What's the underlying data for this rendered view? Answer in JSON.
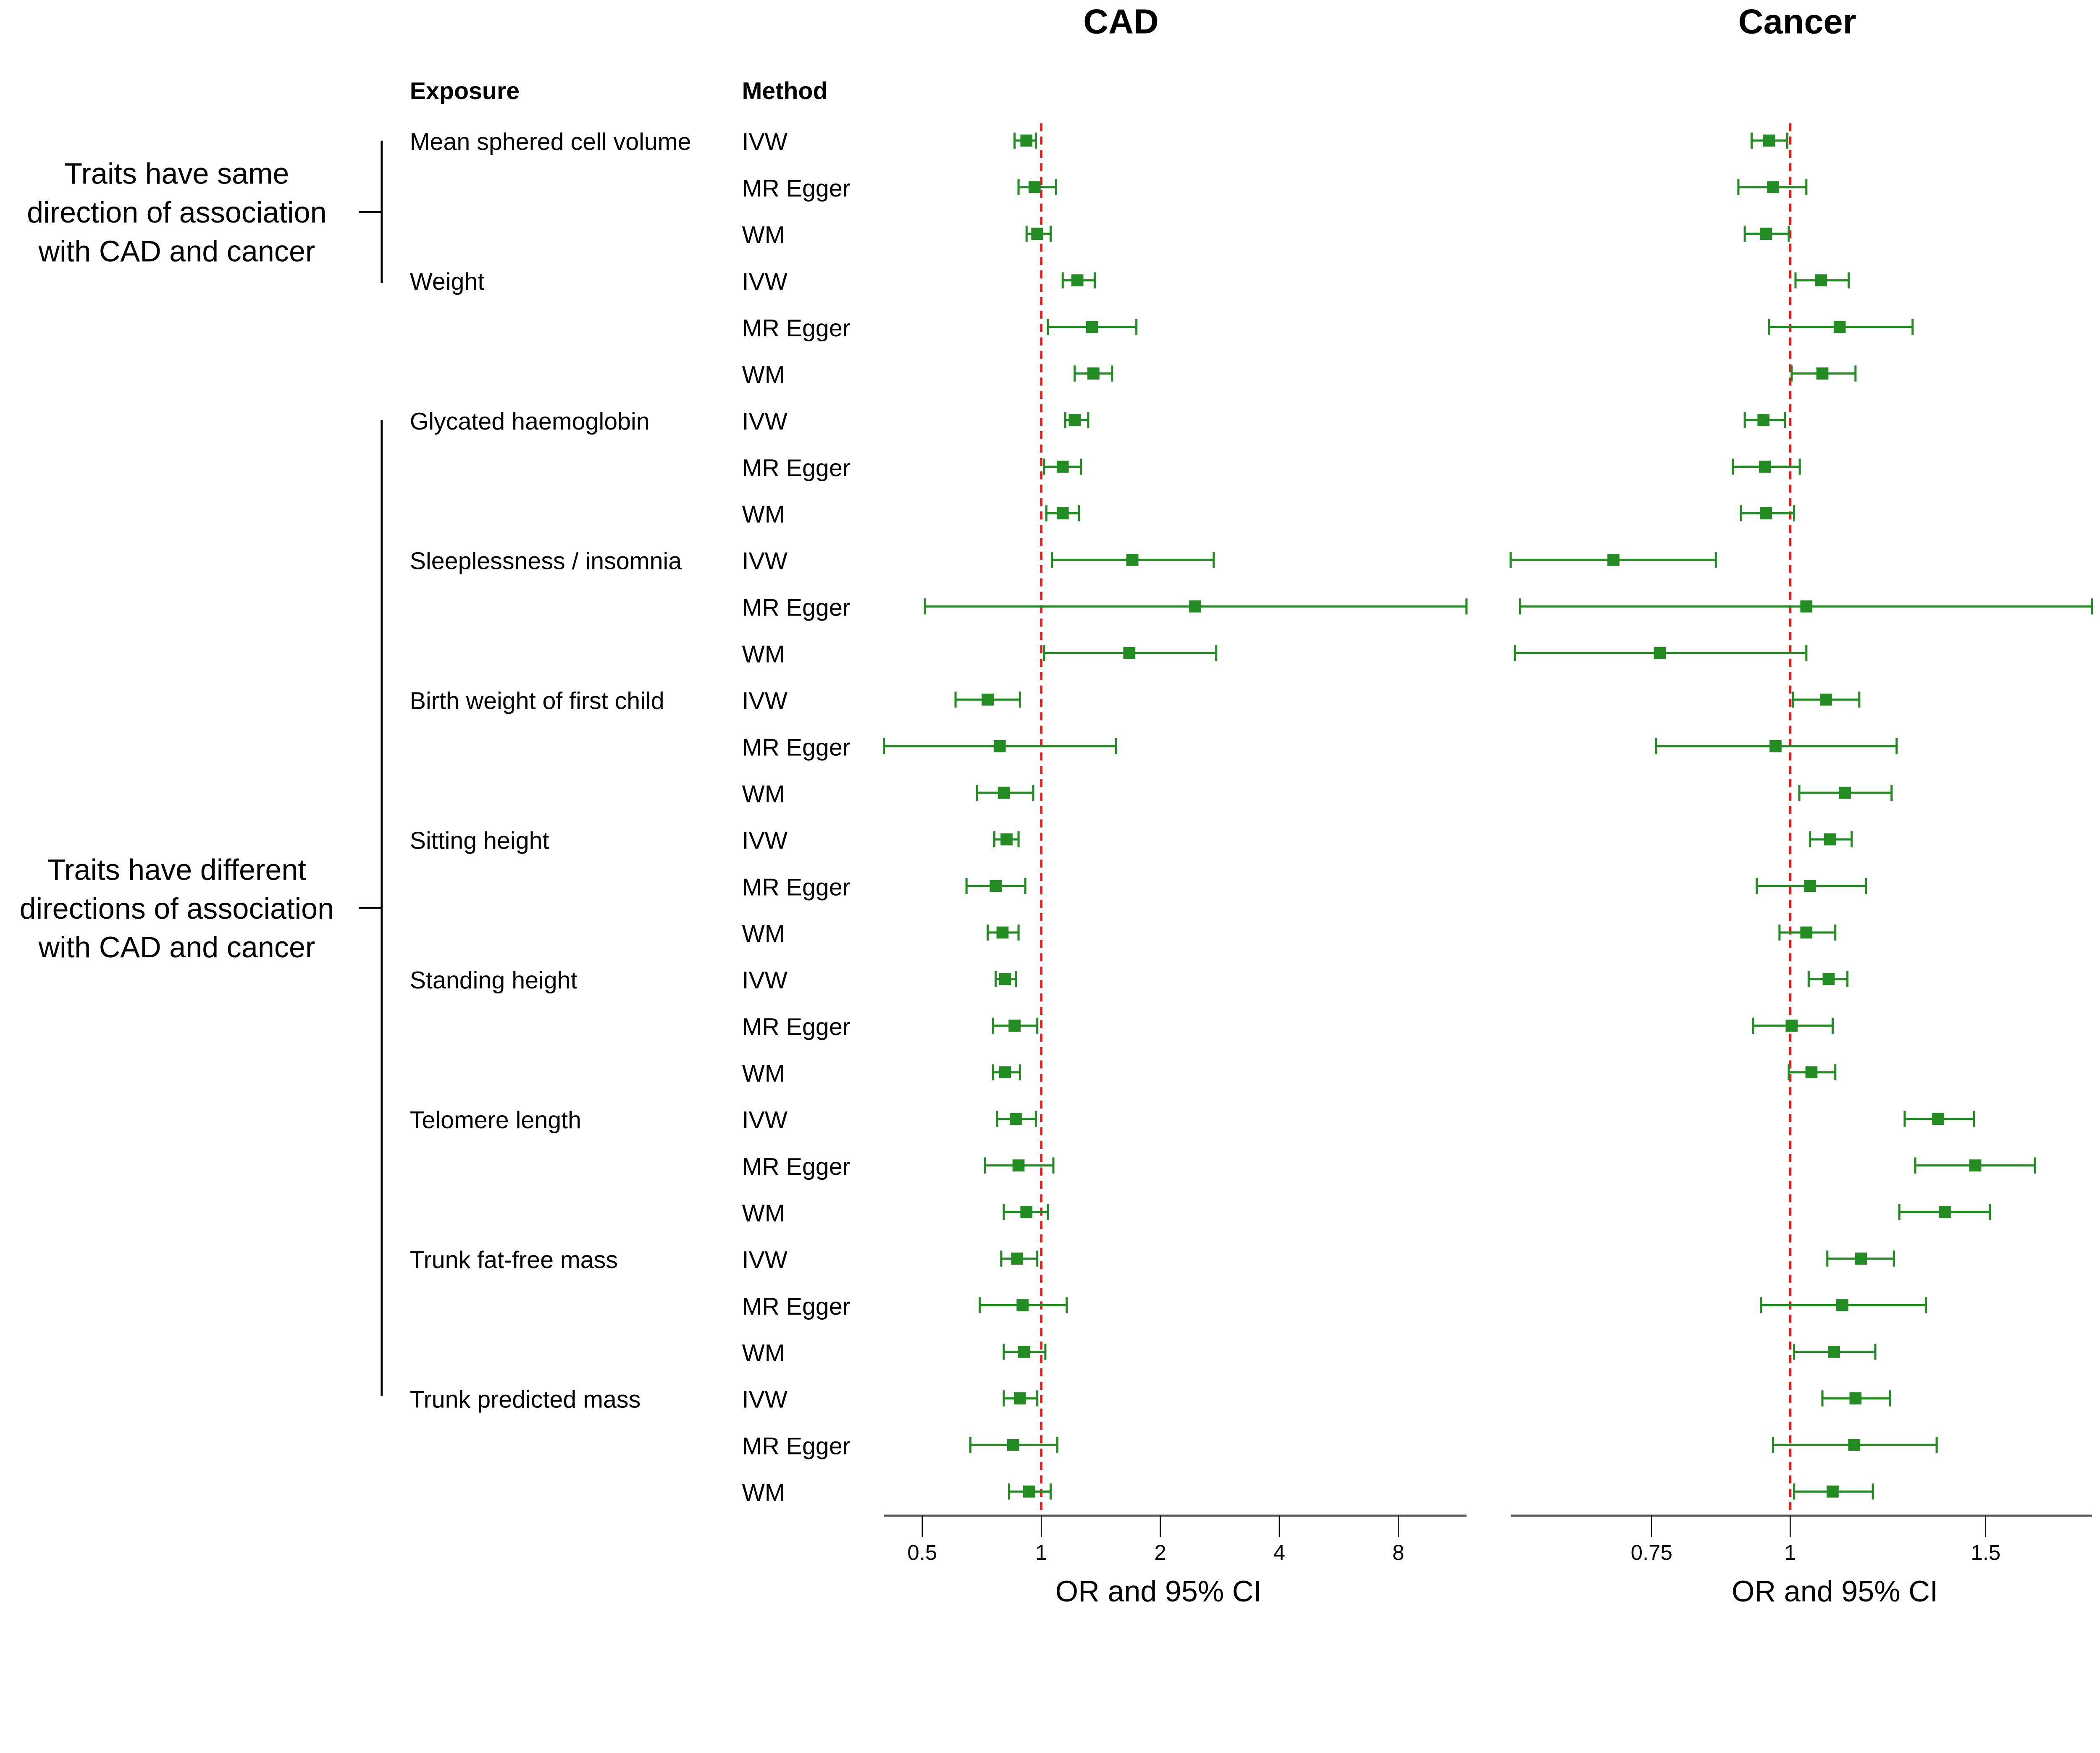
{
  "chart_data": [
    {
      "type": "forest",
      "title": "CAD",
      "xlabel": "OR and 95% CI",
      "xscale": "log",
      "xticks": [
        0.5,
        1,
        2,
        4,
        8
      ],
      "tick_labels": [
        "0.5",
        "1",
        "2",
        "4",
        "8"
      ],
      "xlim": [
        0.4,
        11.9
      ],
      "reference_line": 1,
      "values": [
        [
          0.917,
          0.856,
          0.969
        ],
        [
          0.962,
          0.876,
          1.09
        ],
        [
          0.977,
          0.918,
          1.056
        ],
        [
          1.234,
          1.133,
          1.365
        ],
        [
          1.345,
          1.04,
          1.74
        ],
        [
          1.355,
          1.215,
          1.51
        ],
        [
          1.215,
          1.15,
          1.314
        ],
        [
          1.133,
          1.016,
          1.26
        ],
        [
          1.133,
          1.03,
          1.244
        ],
        [
          1.7,
          1.064,
          2.73
        ],
        [
          2.45,
          0.508,
          12.0
        ],
        [
          1.67,
          1.016,
          2.77
        ],
        [
          0.732,
          0.607,
          0.883
        ],
        [
          0.785,
          0.399,
          1.546
        ],
        [
          0.804,
          0.688,
          0.954
        ],
        [
          0.817,
          0.761,
          0.876
        ],
        [
          0.767,
          0.647,
          0.911
        ],
        [
          0.798,
          0.732,
          0.876
        ],
        [
          0.81,
          0.767,
          0.862
        ],
        [
          0.856,
          0.755,
          0.977
        ],
        [
          0.81,
          0.755,
          0.883
        ],
        [
          0.862,
          0.773,
          0.969
        ],
        [
          0.876,
          0.721,
          1.073
        ],
        [
          0.917,
          0.804,
          1.04
        ],
        [
          0.869,
          0.792,
          0.977
        ],
        [
          0.897,
          0.699,
          1.16
        ],
        [
          0.904,
          0.804,
          1.024
        ],
        [
          0.883,
          0.804,
          0.977
        ],
        [
          0.849,
          0.662,
          1.098
        ],
        [
          0.932,
          0.829,
          1.056
        ]
      ]
    },
    {
      "type": "forest",
      "title": "Cancer",
      "xlabel": "OR and 95% CI",
      "xscale": "log",
      "xticks": [
        0.75,
        1,
        1.5
      ],
      "tick_labels": [
        "0.75",
        "1",
        "1.5"
      ],
      "xlim": [
        0.56,
        1.87
      ],
      "reference_line": 1,
      "values": [
        [
          0.957,
          0.923,
          0.994
        ],
        [
          0.965,
          0.898,
          1.034
        ],
        [
          0.951,
          0.91,
          0.997
        ],
        [
          1.066,
          1.011,
          1.129
        ],
        [
          1.108,
          0.957,
          1.289
        ],
        [
          1.069,
          1.003,
          1.145
        ],
        [
          0.946,
          0.91,
          0.989
        ],
        [
          0.949,
          0.888,
          1.02
        ],
        [
          0.951,
          0.903,
          1.008
        ],
        [
          0.693,
          0.56,
          0.857
        ],
        [
          1.034,
          0.571,
          1.87
        ],
        [
          0.763,
          0.565,
          1.034
        ],
        [
          1.077,
          1.006,
          1.154
        ],
        [
          0.97,
          0.757,
          1.247
        ],
        [
          1.12,
          1.019,
          1.234
        ],
        [
          1.086,
          1.042,
          1.136
        ],
        [
          1.042,
          0.933,
          1.17
        ],
        [
          1.034,
          0.978,
          1.098
        ],
        [
          1.083,
          1.039,
          1.126
        ],
        [
          1.003,
          0.926,
          1.092
        ],
        [
          1.045,
          0.997,
          1.098
        ],
        [
          1.359,
          1.268,
          1.464
        ],
        [
          1.468,
          1.296,
          1.662
        ],
        [
          1.378,
          1.254,
          1.513
        ],
        [
          1.158,
          1.08,
          1.24
        ],
        [
          1.114,
          0.941,
          1.325
        ],
        [
          1.095,
          1.008,
          1.193
        ],
        [
          1.145,
          1.069,
          1.23
        ],
        [
          1.142,
          0.965,
          1.355
        ],
        [
          1.092,
          1.008,
          1.187
        ]
      ]
    }
  ],
  "columns": {
    "exposure": "Exposure",
    "method": "Method"
  },
  "exposures": [
    "Mean sphered cell volume",
    "Weight",
    "Glycated haemoglobin",
    "Sleeplessness / insomnia",
    "Birth weight of first child",
    "Sitting height",
    "Standing height",
    "Telomere length",
    "Trunk fat-free mass",
    "Trunk predicted mass"
  ],
  "methods": [
    "IVW",
    "MR Egger",
    "WM"
  ],
  "groups": [
    {
      "lines": [
        "Traits have same",
        "direction of association",
        "with CAD and cancer"
      ],
      "first_exposure": 0,
      "last_exposure": 1
    },
    {
      "lines": [
        "Traits have different",
        "directions of association",
        "with CAD and cancer"
      ],
      "first_exposure": 2,
      "last_exposure": 9
    }
  ],
  "colors": {
    "point": "#228B22",
    "reference": "#E31A1C",
    "axis": "#555555"
  }
}
